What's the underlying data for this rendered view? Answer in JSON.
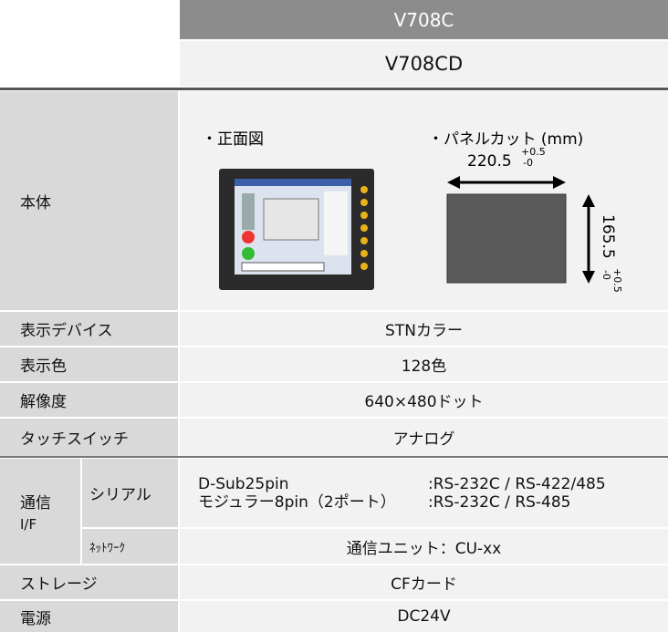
{
  "header": {
    "model": "V708C",
    "variant": "V708CD"
  },
  "body": {
    "label": "本体",
    "front_view": "・正面図",
    "panel_cut": "・パネルカット (mm)",
    "width": "220.5",
    "width_tol_plus": "+0.5",
    "width_tol_minus": "-0",
    "height": "165.5",
    "height_tol_plus": "+0.5",
    "height_tol_minus": "-0"
  },
  "rows": [
    {
      "label": "表示デバイス",
      "value": "STNカラー"
    },
    {
      "label": "表示色",
      "value": "128色"
    },
    {
      "label": "解像度",
      "value": "640×480ドット"
    },
    {
      "label": "タッチスイッチ",
      "value": "アナログ"
    }
  ],
  "comm": {
    "label_lines": [
      "通信",
      "I/F"
    ],
    "serial_label": "シリアル",
    "serial": [
      {
        "port": "D-Sub25pin",
        "spec": ":RS-232C / RS-422/485"
      },
      {
        "port": "モジュラー8pin（2ポート）",
        "spec": ":RS-232C / RS-485"
      }
    ],
    "network_label": "ﾈｯﾄﾜｰｸ",
    "network": "通信ユニット：CU-xx"
  },
  "rows_after": [
    {
      "label": "ストレージ",
      "value": "CFカード"
    },
    {
      "label": "電源",
      "value": "DC24V"
    }
  ]
}
